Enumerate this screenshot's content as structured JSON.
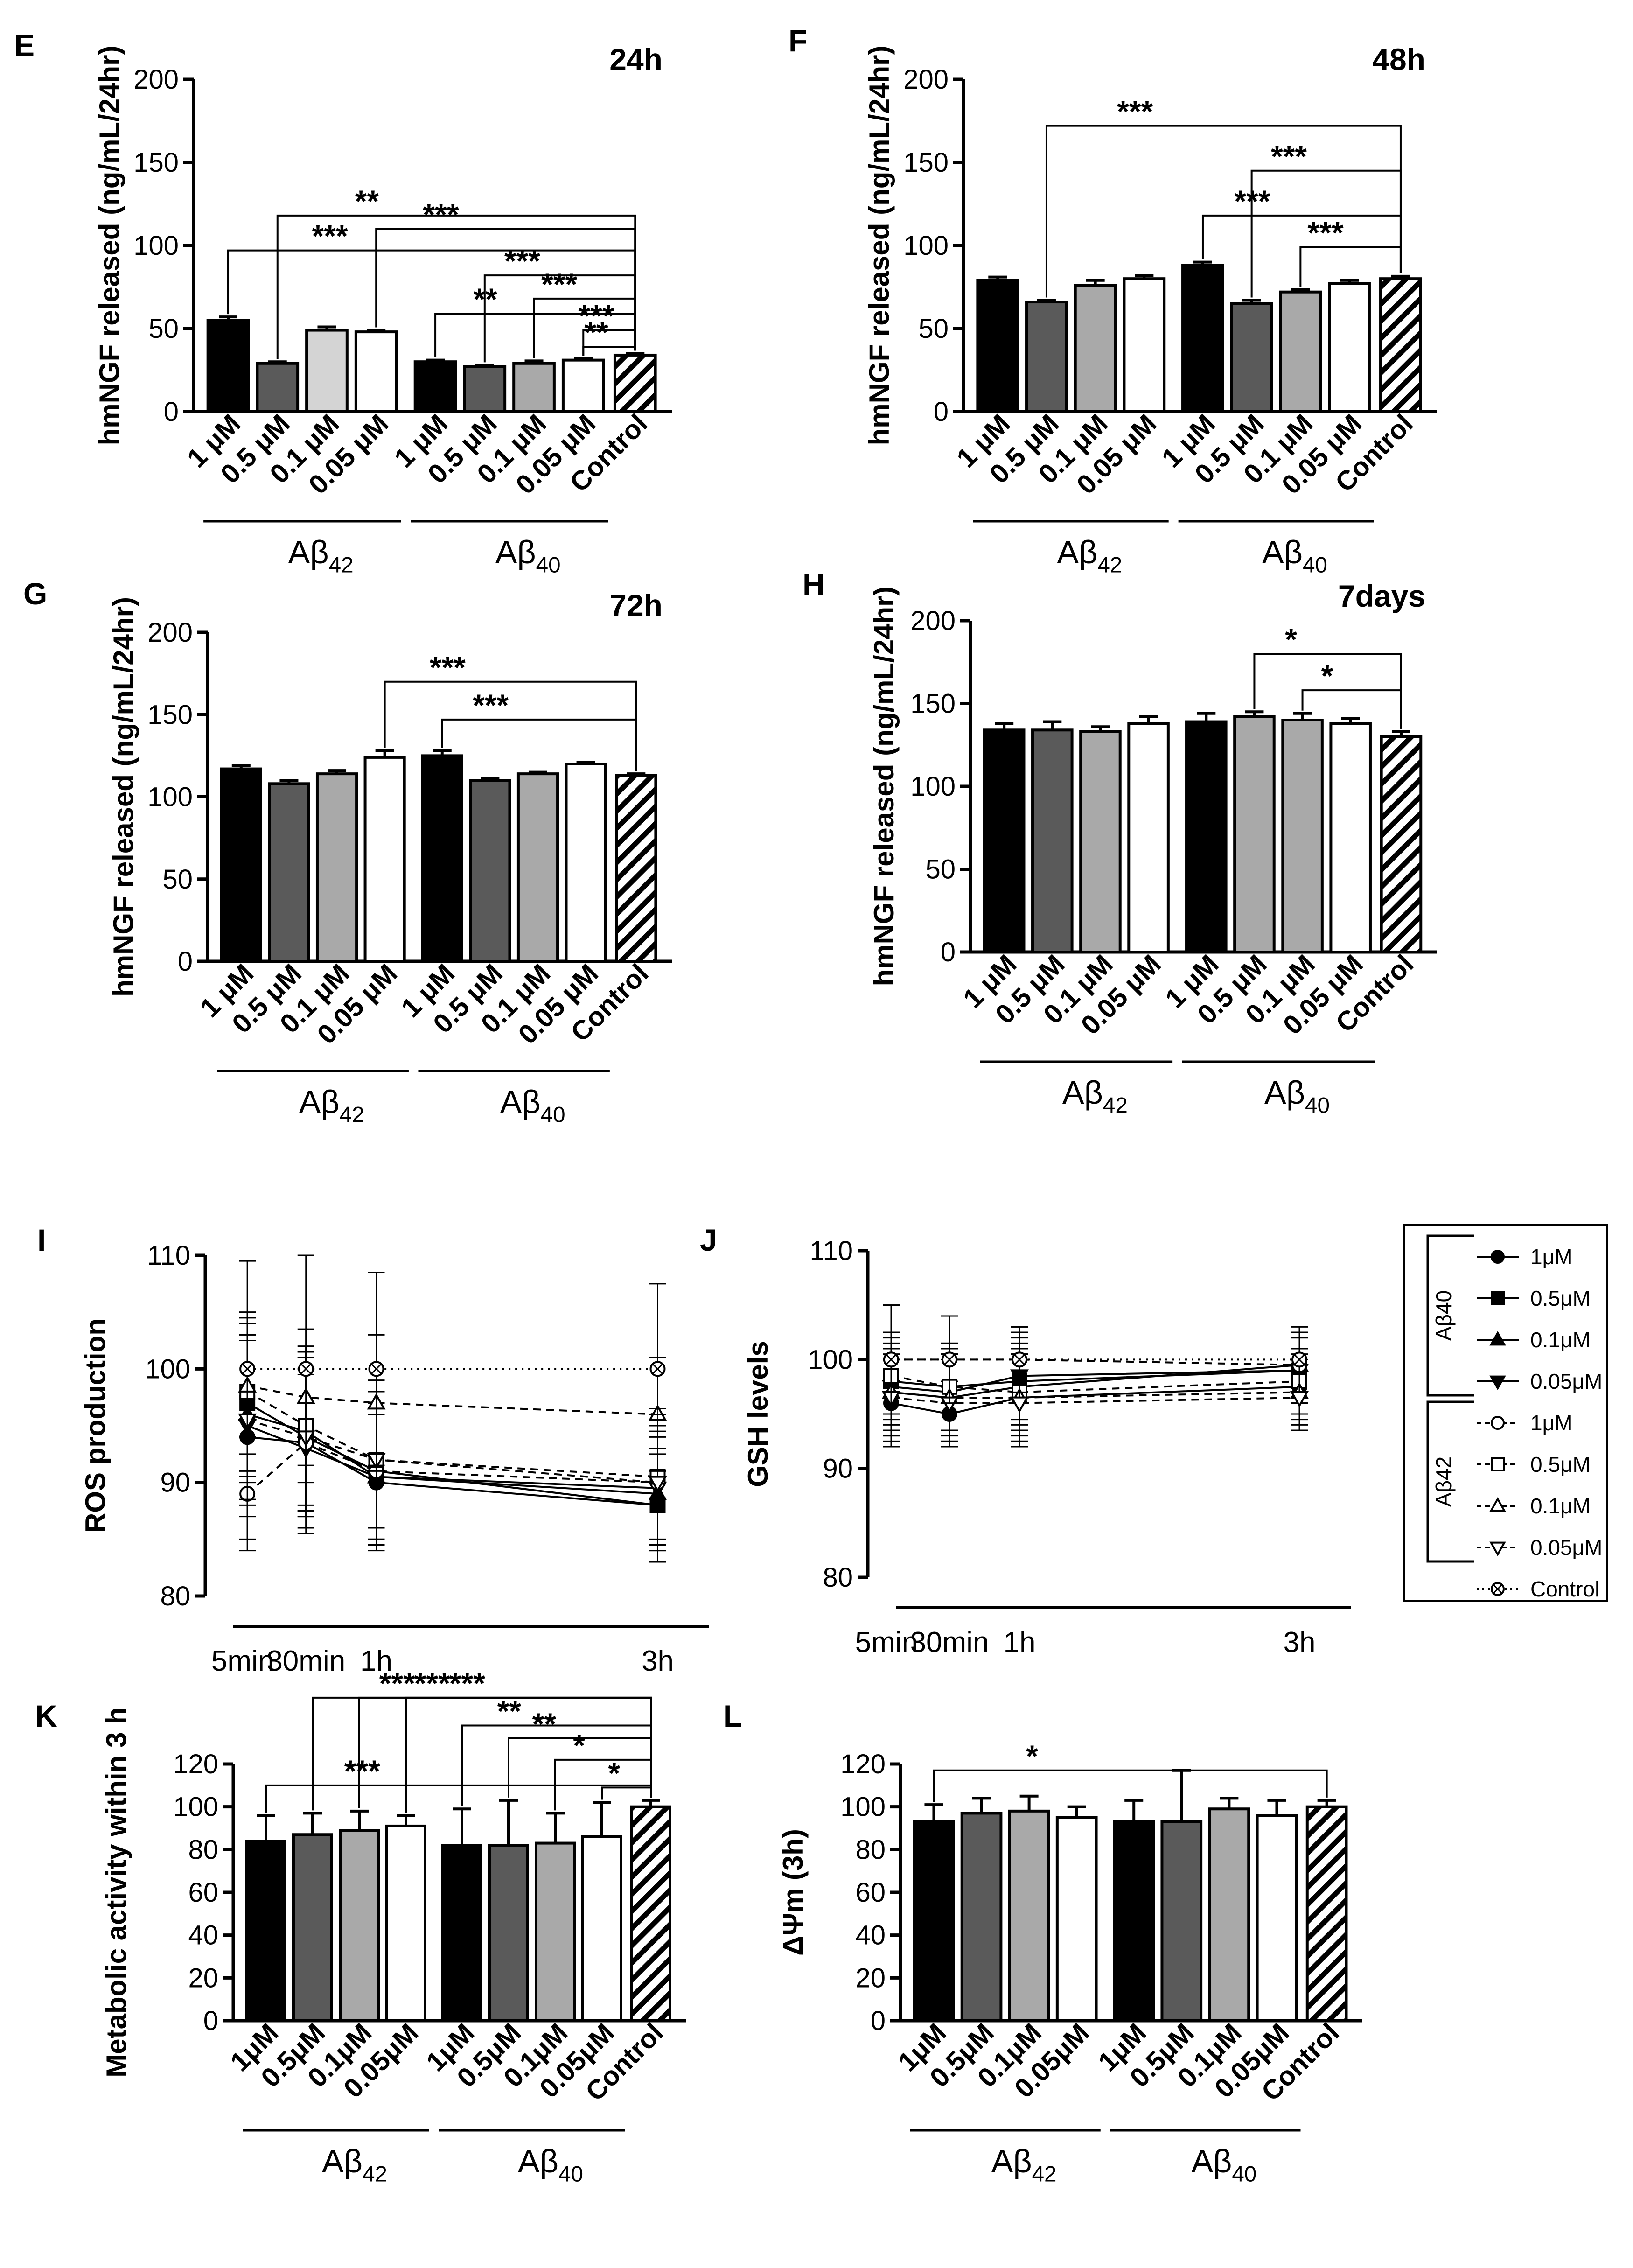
{
  "colors": {
    "black": "#000000",
    "dark_gray": "#5a5a5a",
    "mid_gray": "#a9a9a9",
    "light_gray": "#d4d4d4",
    "white": "#ffffff"
  },
  "legend": {
    "groups": [
      {
        "label": "Aβ40",
        "items": [
          {
            "label": "1μM",
            "marker": "filled-circle"
          },
          {
            "label": "0.5μM",
            "marker": "filled-square"
          },
          {
            "label": "0.1μM",
            "marker": "filled-triangle-up"
          },
          {
            "label": "0.05μM",
            "marker": "filled-triangle-down"
          }
        ]
      },
      {
        "label": "Aβ42",
        "items": [
          {
            "label": "1μM",
            "marker": "open-circle"
          },
          {
            "label": "0.5μM",
            "marker": "open-square"
          },
          {
            "label": "0.1μM",
            "marker": "open-triangle-up"
          },
          {
            "label": "0.05μM",
            "marker": "open-triangle-down"
          }
        ]
      }
    ],
    "control": {
      "label": "Control",
      "marker": "crossed-circle"
    }
  },
  "chart_data": [
    {
      "id": "E",
      "type": "bar",
      "title": "24h",
      "ylabel": "hmNGF released (ng/mL/24hr)",
      "ylim": [
        0,
        200
      ],
      "yticks": [
        "0",
        "50",
        "100",
        "150",
        "200"
      ],
      "categories": [
        "1 μM",
        "0.5 μM",
        "0.1 μM",
        "0.05 μM",
        "1 μM",
        "0.5 μM",
        "0.1 μM",
        "0.05 μM",
        "Control"
      ],
      "fills": [
        "black",
        "dark_gray",
        "light_gray",
        "white",
        "black",
        "dark_gray",
        "mid_gray",
        "white",
        "hatch"
      ],
      "values": [
        55,
        29,
        49,
        48,
        30,
        27,
        29,
        31,
        34
      ],
      "errors": [
        2,
        1,
        2,
        1,
        1,
        1,
        1.5,
        1,
        1
      ],
      "groups": [
        {
          "label": "Aβ42",
          "span": [
            0,
            3
          ]
        },
        {
          "label": "Aβ40",
          "span": [
            4,
            7
          ]
        }
      ],
      "brackets": [
        {
          "from": 0,
          "to": 8,
          "label": "***",
          "y": 97
        },
        {
          "from": 1,
          "to": 8,
          "label": "**",
          "y": 118
        },
        {
          "from": 3,
          "to": 8,
          "label": "***",
          "y": 110
        },
        {
          "from": 4,
          "to": 8,
          "label": "**",
          "y": 59
        },
        {
          "from": 5,
          "to": 8,
          "label": "***",
          "y": 82
        },
        {
          "from": 6,
          "to": 8,
          "label": "***",
          "y": 68
        },
        {
          "from": 7,
          "to": 8,
          "label": "***",
          "y": 49
        },
        {
          "from": 7,
          "to": 8,
          "label": "**",
          "y": 39
        }
      ]
    },
    {
      "id": "F",
      "type": "bar",
      "title": "48h",
      "ylabel": "hmNGF released (ng/mL/24hr)",
      "ylim": [
        0,
        200
      ],
      "yticks": [
        "0",
        "50",
        "100",
        "150",
        "200"
      ],
      "categories": [
        "1 μM",
        "0.5 μM",
        "0.1 μM",
        "0.05 μM",
        "1 μM",
        "0.5 μM",
        "0.1 μM",
        "0.05 μM",
        "Control"
      ],
      "fills": [
        "black",
        "dark_gray",
        "mid_gray",
        "white",
        "black",
        "dark_gray",
        "mid_gray",
        "white",
        "hatch"
      ],
      "values": [
        79,
        66,
        76,
        80,
        88,
        65,
        72,
        77,
        80
      ],
      "errors": [
        2,
        1,
        3,
        2,
        2,
        2,
        1.5,
        2,
        1.5
      ],
      "groups": [
        {
          "label": "Aβ42",
          "span": [
            0,
            3
          ]
        },
        {
          "label": "Aβ40",
          "span": [
            4,
            7
          ]
        }
      ],
      "brackets": [
        {
          "from": 1,
          "to": 8,
          "label": "***",
          "y": 172
        },
        {
          "from": 5,
          "to": 8,
          "label": "***",
          "y": 145
        },
        {
          "from": 4,
          "to": 8,
          "label": "***",
          "y": 118
        },
        {
          "from": 6,
          "to": 8,
          "label": "***",
          "y": 99
        }
      ]
    },
    {
      "id": "G",
      "type": "bar",
      "title": "72h",
      "ylabel": "hmNGF released (ng/mL/24hr)",
      "ylim": [
        0,
        200
      ],
      "yticks": [
        "0",
        "50",
        "100",
        "150",
        "200"
      ],
      "categories": [
        "1 μM",
        "0.5 μM",
        "0.1 μM",
        "0.05 μM",
        "1 μM",
        "0.5 μM",
        "0.1 μM",
        "0.05 μM",
        "Control"
      ],
      "fills": [
        "black",
        "dark_gray",
        "mid_gray",
        "white",
        "black",
        "dark_gray",
        "mid_gray",
        "white",
        "hatch"
      ],
      "values": [
        117,
        108,
        114,
        124,
        125,
        110,
        114,
        120,
        113
      ],
      "errors": [
        2,
        2,
        2,
        4,
        3,
        1,
        1,
        1,
        1
      ],
      "groups": [
        {
          "label": "Aβ42",
          "span": [
            0,
            3
          ]
        },
        {
          "label": "Aβ40",
          "span": [
            4,
            7
          ]
        }
      ],
      "brackets": [
        {
          "from": 3,
          "to": 8,
          "label": "***",
          "y": 170
        },
        {
          "from": 4,
          "to": 8,
          "label": "***",
          "y": 147
        }
      ]
    },
    {
      "id": "H",
      "type": "bar",
      "title": "7days",
      "ylabel": "hmNGF released (ng/mL/24hr)",
      "ylim": [
        0,
        200
      ],
      "yticks": [
        "0",
        "50",
        "100",
        "150",
        "200"
      ],
      "categories": [
        "1 μM",
        "0.5 μM",
        "0.1 μM",
        "0.05 μM",
        "1 μM",
        "0.5 μM",
        "0.1 μM",
        "0.05 μM",
        "Control"
      ],
      "fills": [
        "black",
        "dark_gray",
        "mid_gray",
        "white",
        "black",
        "mid_gray",
        "mid_gray",
        "white",
        "hatch"
      ],
      "values": [
        134,
        134,
        133,
        138,
        139,
        142,
        140,
        138,
        130
      ],
      "errors": [
        4,
        5,
        3,
        4,
        5,
        3,
        4,
        3,
        3
      ],
      "groups": [
        {
          "label": "Aβ42",
          "span": [
            0,
            3
          ]
        },
        {
          "label": "Aβ40",
          "span": [
            4,
            7
          ]
        }
      ],
      "brackets": [
        {
          "from": 5,
          "to": 8,
          "label": "*",
          "y": 180
        },
        {
          "from": 6,
          "to": 8,
          "label": "*",
          "y": 158
        }
      ]
    },
    {
      "id": "I",
      "type": "line",
      "title": "",
      "ylabel": "ROS production",
      "ylim": [
        80,
        110
      ],
      "yticks": [
        "80",
        "90",
        "100",
        "110"
      ],
      "x": [
        5,
        30,
        60,
        180
      ],
      "xlim": [
        0,
        200
      ],
      "xtick_labels": [
        "5min",
        "30min",
        "1h",
        "3h"
      ],
      "series": [
        {
          "name": "Aβ40 1μM",
          "marker": "filled-circle",
          "style": "solid",
          "values": [
            94,
            93.5,
            90,
            88
          ],
          "err": [
            9,
            8,
            6,
            5
          ]
        },
        {
          "name": "Aβ40 0.5μM",
          "marker": "filled-square",
          "style": "solid",
          "values": [
            97,
            94,
            91,
            88
          ],
          "err": [
            7,
            7,
            6,
            5
          ]
        },
        {
          "name": "Aβ40 0.1μM",
          "marker": "filled-triangle-up",
          "style": "solid",
          "values": [
            96,
            94.5,
            90.5,
            89
          ],
          "err": [
            8,
            7,
            6,
            5
          ]
        },
        {
          "name": "Aβ40 0.05μM",
          "marker": "filled-triangle-down",
          "style": "solid",
          "values": [
            95,
            93,
            90.5,
            89.5
          ],
          "err": [
            8,
            7,
            6,
            5
          ]
        },
        {
          "name": "Aβ42 1μM",
          "marker": "open-circle",
          "style": "dashed",
          "values": [
            89,
            93.5,
            91,
            90
          ],
          "err": [
            5,
            6,
            6,
            5
          ]
        },
        {
          "name": "Aβ42 0.5μM",
          "marker": "open-square",
          "style": "dashed",
          "values": [
            98,
            95,
            92,
            90.5
          ],
          "err": [
            7,
            7,
            7,
            6
          ]
        },
        {
          "name": "Aβ42 0.1μM",
          "marker": "open-triangle-up",
          "style": "dashed",
          "values": [
            98.5,
            97.5,
            97,
            96
          ],
          "err": [
            6,
            6,
            6,
            5
          ]
        },
        {
          "name": "Aβ42 0.05μM",
          "marker": "open-triangle-down",
          "style": "dashed",
          "values": [
            95.5,
            94,
            92,
            90
          ],
          "err": [
            7,
            7,
            6,
            6
          ]
        },
        {
          "name": "Control",
          "marker": "crossed-circle",
          "style": "dotted",
          "values": [
            100,
            100,
            100,
            100
          ],
          "err": [
            9.5,
            10,
            8.5,
            7.5
          ]
        }
      ]
    },
    {
      "id": "J",
      "type": "line",
      "title": "",
      "ylabel": "GSH levels",
      "ylim": [
        80,
        110
      ],
      "yticks": [
        "80",
        "90",
        "100",
        "110"
      ],
      "x": [
        5,
        30,
        60,
        180
      ],
      "xlim": [
        0,
        200
      ],
      "xtick_labels": [
        "5min",
        "30min",
        "1h",
        "3h"
      ],
      "series": [
        {
          "name": "Aβ40 1μM",
          "marker": "filled-circle",
          "style": "solid",
          "values": [
            96,
            95,
            96.5,
            97.5
          ],
          "err": [
            4,
            3,
            4,
            3
          ]
        },
        {
          "name": "Aβ40 0.5μM",
          "marker": "filled-square",
          "style": "solid",
          "values": [
            98,
            97.5,
            98,
            99
          ],
          "err": [
            4,
            4,
            4,
            3
          ]
        },
        {
          "name": "Aβ40 0.1μM",
          "marker": "filled-triangle-up",
          "style": "solid",
          "values": [
            97,
            96.5,
            97.5,
            99.5
          ],
          "err": [
            4,
            4,
            4,
            3
          ]
        },
        {
          "name": "Aβ40 0.05μM",
          "marker": "filled-triangle-down",
          "style": "solid",
          "values": [
            97.5,
            97,
            98.5,
            99
          ],
          "err": [
            4,
            4,
            4,
            3
          ]
        },
        {
          "name": "Aβ42 1μM",
          "marker": "open-circle",
          "style": "dashed",
          "values": [
            100,
            100,
            100,
            99.5
          ],
          "err": [
            5,
            4,
            3,
            3
          ]
        },
        {
          "name": "Aβ42 0.5μM",
          "marker": "open-square",
          "style": "dashed",
          "values": [
            98.5,
            97.5,
            97,
            98
          ],
          "err": [
            4,
            4,
            4,
            3
          ]
        },
        {
          "name": "Aβ42 0.1μM",
          "marker": "open-triangle-up",
          "style": "dashed",
          "values": [
            97,
            96.5,
            96.5,
            97
          ],
          "err": [
            4,
            4,
            4,
            3
          ]
        },
        {
          "name": "Aβ42 0.05μM",
          "marker": "open-triangle-down",
          "style": "dashed",
          "values": [
            96.5,
            96,
            96,
            96.5
          ],
          "err": [
            4,
            4,
            4,
            3
          ]
        },
        {
          "name": "Control",
          "marker": "crossed-circle",
          "style": "dotted",
          "values": [
            100,
            100,
            100,
            100
          ],
          "err": [
            5,
            4,
            3,
            3
          ]
        }
      ]
    },
    {
      "id": "K",
      "type": "bar",
      "title": "",
      "ylabel": "Metabolic activity within 3 h",
      "ylim": [
        0,
        120
      ],
      "yticks": [
        "0",
        "20",
        "40",
        "60",
        "80",
        "100",
        "120"
      ],
      "categories": [
        "1μM",
        "0.5μM",
        "0.1μM",
        "0.05μM",
        "1μM",
        "0.5μM",
        "0.1μM",
        "0.05μM",
        "Control"
      ],
      "fills": [
        "black",
        "dark_gray",
        "mid_gray",
        "white",
        "black",
        "dark_gray",
        "mid_gray",
        "white",
        "hatch"
      ],
      "values": [
        84,
        87,
        89,
        91,
        82,
        82,
        83,
        86,
        100
      ],
      "errors": [
        12,
        10,
        9,
        5,
        17,
        21,
        14,
        16,
        3
      ],
      "groups": [
        {
          "label": "Aβ42",
          "span": [
            0,
            3
          ]
        },
        {
          "label": "Aβ40",
          "span": [
            4,
            7
          ]
        }
      ],
      "brackets": [
        {
          "from": 0,
          "to": 8,
          "label": "***",
          "y": 110
        },
        {
          "from": 1,
          "to": 8,
          "label": "***",
          "y": 151
        },
        {
          "from": 2,
          "to": 8,
          "label": "***",
          "y": 151
        },
        {
          "from": 3,
          "to": 8,
          "label": "***",
          "y": 151
        },
        {
          "from": 4,
          "to": 8,
          "label": "**",
          "y": 138
        },
        {
          "from": 5,
          "to": 8,
          "label": "**",
          "y": 132
        },
        {
          "from": 6,
          "to": 8,
          "label": "*",
          "y": 122
        },
        {
          "from": 7,
          "to": 8,
          "label": "*",
          "y": 109
        }
      ]
    },
    {
      "id": "L",
      "type": "bar",
      "title": "",
      "ylabel": "ΔΨm (3h)",
      "ylim": [
        0,
        120
      ],
      "yticks": [
        "0",
        "20",
        "40",
        "60",
        "80",
        "100",
        "120"
      ],
      "categories": [
        "1μM",
        "0.5μM",
        "0.1μM",
        "0.05μM",
        "1μM",
        "0.5μM",
        "0.1μM",
        "0.05μM",
        "Control"
      ],
      "fills": [
        "black",
        "dark_gray",
        "mid_gray",
        "white",
        "black",
        "dark_gray",
        "mid_gray",
        "white",
        "hatch"
      ],
      "values": [
        93,
        97,
        98,
        95,
        93,
        93,
        99,
        96,
        100
      ],
      "errors": [
        8,
        7,
        7,
        5,
        10,
        24,
        5,
        7,
        3
      ],
      "groups": [
        {
          "label": "Aβ42",
          "span": [
            0,
            3
          ]
        },
        {
          "label": "Aβ40",
          "span": [
            4,
            7
          ]
        }
      ],
      "brackets": [
        {
          "from": 0,
          "to": 8,
          "label": "*",
          "y": 117
        }
      ]
    }
  ]
}
